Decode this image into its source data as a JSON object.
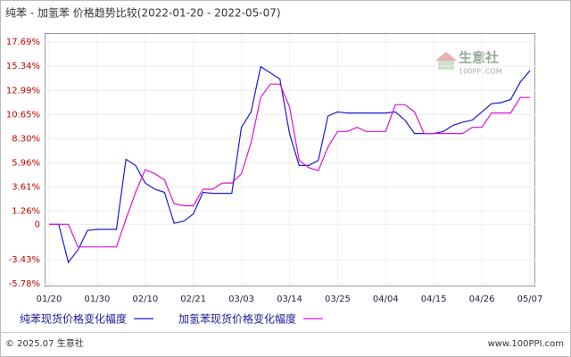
{
  "chart_data": {
    "type": "line",
    "title": "纯苯 - 加氢苯 价格趋势比较(2022-01-20 - 2022-05-07)",
    "categories": [
      "01/20",
      null,
      null,
      null,
      null,
      "01/30",
      null,
      null,
      null,
      null,
      "02/10",
      null,
      null,
      null,
      null,
      "02/21",
      null,
      null,
      null,
      null,
      "03/03",
      null,
      null,
      null,
      null,
      "03/14",
      null,
      null,
      null,
      null,
      "03/25",
      null,
      null,
      null,
      null,
      "04/04",
      null,
      null,
      null,
      null,
      "04/15",
      null,
      null,
      null,
      null,
      "04/26",
      null,
      null,
      null,
      null,
      "05/07"
    ],
    "series": [
      {
        "name": "纯苯现货价格变化幅度",
        "color": "#1a1adb",
        "values": [
          0,
          0,
          -3.7,
          -2.5,
          -0.6,
          -0.5,
          -0.5,
          -0.5,
          6.3,
          5.7,
          4.0,
          3.4,
          3.1,
          0.1,
          0.3,
          1.0,
          3.1,
          3.0,
          3.0,
          3.0,
          9.4,
          10.9,
          15.3,
          14.7,
          14.1,
          8.8,
          5.7,
          5.7,
          6.2,
          10.5,
          10.9,
          10.8,
          10.8,
          10.8,
          10.8,
          10.8,
          10.9,
          10.1,
          8.8,
          8.8,
          8.8,
          9.0,
          9.6,
          9.9,
          10.1,
          10.9,
          11.7,
          11.8,
          12.1,
          13.8,
          14.9
        ]
      },
      {
        "name": "加氢苯现货价格变化幅度",
        "color": "#e010d8",
        "values": [
          0,
          0,
          0,
          -2.2,
          -2.2,
          -2.2,
          -2.2,
          -2.2,
          0.5,
          3.1,
          5.3,
          4.9,
          4.3,
          2.0,
          1.8,
          1.8,
          3.4,
          3.4,
          4.0,
          4.0,
          4.9,
          7.9,
          12.3,
          13.6,
          13.6,
          11.4,
          6.2,
          5.5,
          5.2,
          7.5,
          9.0,
          9.0,
          9.4,
          9.0,
          9.0,
          9.0,
          11.6,
          11.6,
          10.9,
          8.8,
          8.8,
          8.8,
          8.8,
          8.8,
          9.4,
          9.4,
          10.8,
          10.8,
          10.8,
          12.3,
          12.3
        ]
      }
    ],
    "ylim": [
      -5.78,
      17.69
    ],
    "yticks": [
      {
        "value": -5.78,
        "label": "-5.78%"
      },
      {
        "value": -3.43,
        "label": "-3.43%"
      },
      0,
      {
        "value": 1.26,
        "label": "1.26%"
      },
      {
        "value": 3.61,
        "label": "3.61%"
      },
      {
        "value": 5.96,
        "label": "5.96%"
      },
      {
        "value": 8.3,
        "label": "8.30%"
      },
      {
        "value": 10.65,
        "label": "10.65%"
      },
      {
        "value": 12.99,
        "label": "12.99%"
      },
      {
        "value": 15.34,
        "label": "15.34%"
      },
      {
        "value": 17.69,
        "label": "17.69%"
      }
    ],
    "grid": true,
    "watermark": "生意社",
    "watermark_sub": "100PPI.COM",
    "footer_left": "© 2025.07 生意社",
    "footer_right": "www.100PPI.com"
  }
}
